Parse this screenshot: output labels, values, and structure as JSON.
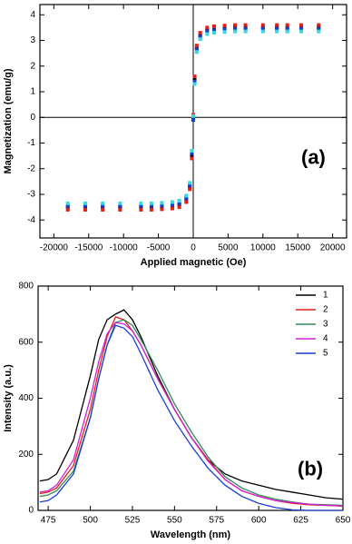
{
  "chart_data": [
    {
      "type": "scatter",
      "annotation": "(a)",
      "x_label": "Applied magnetic (Oe)",
      "y_label": "Magnetization (emu/g)",
      "xlim": [
        -22000,
        22000
      ],
      "ylim": [
        -4.7,
        4.4
      ],
      "xticks": [
        -20000,
        -15000,
        -10000,
        -5000,
        0,
        5000,
        10000,
        15000,
        20000
      ],
      "yticks": [
        -4,
        -3,
        -2,
        -1,
        0,
        1,
        2,
        3,
        4
      ],
      "zero_lines": true,
      "x": [
        -18000,
        -15500,
        -13000,
        -10500,
        -7500,
        -6000,
        -4500,
        -3000,
        -2000,
        -1000,
        -500,
        -200,
        0,
        200,
        500,
        1000,
        2000,
        3000,
        4500,
        6000,
        7500,
        10000,
        12000,
        13500,
        15500,
        18000
      ],
      "series": [
        {
          "color": "#000000",
          "values": [
            -3.5,
            -3.5,
            -3.5,
            -3.5,
            -3.5,
            -3.5,
            -3.48,
            -3.45,
            -3.4,
            -3.2,
            -2.7,
            -1.5,
            0,
            1.5,
            2.7,
            3.2,
            3.4,
            3.45,
            3.48,
            3.5,
            3.5,
            3.5,
            3.5,
            3.5,
            3.5,
            3.5
          ]
        },
        {
          "color": "#e0201a",
          "values": [
            -3.6,
            -3.6,
            -3.6,
            -3.6,
            -3.6,
            -3.6,
            -3.58,
            -3.55,
            -3.5,
            -3.3,
            -2.8,
            -1.6,
            0.1,
            1.6,
            2.8,
            3.3,
            3.5,
            3.55,
            3.58,
            3.6,
            3.6,
            3.6,
            3.6,
            3.6,
            3.6,
            3.6
          ]
        },
        {
          "color": "#1a3fd0",
          "values": [
            -3.45,
            -3.45,
            -3.45,
            -3.45,
            -3.45,
            -3.45,
            -3.43,
            -3.4,
            -3.35,
            -3.15,
            -2.65,
            -1.4,
            -0.1,
            1.4,
            2.65,
            3.15,
            3.35,
            3.4,
            3.43,
            3.45,
            3.45,
            3.45,
            3.45,
            3.45,
            3.45,
            3.45
          ]
        },
        {
          "color": "#38d8e0",
          "values": [
            -3.35,
            -3.35,
            -3.35,
            -3.35,
            -3.35,
            -3.35,
            -3.33,
            -3.3,
            -3.25,
            -3.05,
            -2.55,
            -1.3,
            0.05,
            1.3,
            2.55,
            3.05,
            3.25,
            3.3,
            3.33,
            3.35,
            3.35,
            3.35,
            3.35,
            3.35,
            3.35,
            3.35
          ]
        }
      ]
    },
    {
      "type": "line",
      "annotation": "(b)",
      "x_label": "Wavelength (nm)",
      "y_label": "Intensity (a.u.)",
      "xlim": [
        469,
        650
      ],
      "ylim": [
        0,
        800
      ],
      "xticks": [
        475,
        500,
        525,
        550,
        575,
        600,
        625,
        650
      ],
      "yticks": [
        0,
        200,
        400,
        600,
        800
      ],
      "legend": "top-right",
      "x": [
        470,
        475,
        480,
        490,
        500,
        505,
        510,
        515,
        520,
        525,
        530,
        540,
        550,
        560,
        570,
        580,
        590,
        600,
        610,
        620,
        630,
        640,
        650
      ],
      "series": [
        {
          "name": "1",
          "color": "#000000",
          "values": [
            105,
            110,
            130,
            250,
            480,
            610,
            680,
            700,
            715,
            680,
            620,
            480,
            360,
            260,
            180,
            130,
            105,
            90,
            75,
            65,
            55,
            45,
            40
          ]
        },
        {
          "name": "2",
          "color": "#e0201a",
          "values": [
            60,
            65,
            80,
            160,
            360,
            500,
            620,
            690,
            680,
            640,
            590,
            470,
            360,
            260,
            180,
            110,
            70,
            50,
            35,
            25,
            20,
            18,
            15
          ]
        },
        {
          "name": "3",
          "color": "#2e8b57",
          "values": [
            50,
            55,
            70,
            140,
            330,
            470,
            590,
            670,
            680,
            660,
            610,
            500,
            380,
            280,
            190,
            120,
            80,
            55,
            40,
            30,
            22,
            20,
            18
          ]
        },
        {
          "name": "4",
          "color": "#d020d0",
          "values": [
            65,
            70,
            90,
            180,
            400,
            530,
            630,
            670,
            665,
            640,
            590,
            470,
            360,
            260,
            175,
            110,
            70,
            50,
            35,
            28,
            22,
            18,
            16
          ]
        },
        {
          "name": "5",
          "color": "#1a3fd0",
          "values": [
            30,
            35,
            55,
            130,
            330,
            470,
            590,
            660,
            650,
            620,
            560,
            430,
            320,
            230,
            150,
            90,
            50,
            25,
            10,
            2,
            0,
            0,
            0
          ]
        }
      ]
    }
  ]
}
